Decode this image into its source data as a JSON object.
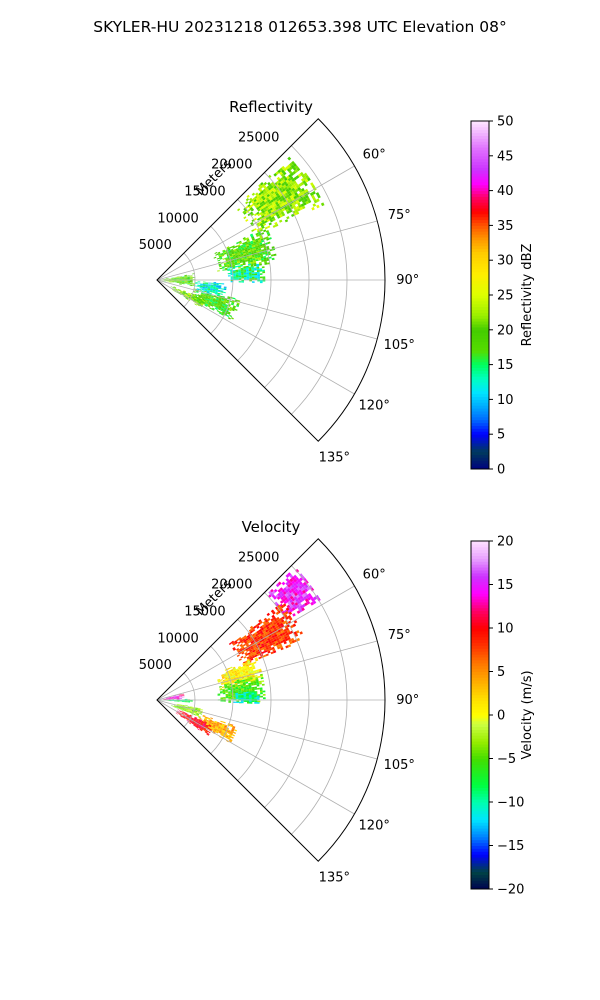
{
  "figure": {
    "suptitle": "SKYLER-HU  20231218  012653.398 UTC Elevation 08°"
  },
  "chart_data": [
    {
      "type": "heatmap",
      "projection": "polar-sector",
      "title": "Reflectivity",
      "radial_label": "Meters",
      "radial_ticks": [
        "5000",
        "10000",
        "15000",
        "20000",
        "25000"
      ],
      "radial_tick_values": [
        5000,
        10000,
        15000,
        20000,
        25000
      ],
      "rlim": [
        0,
        30000
      ],
      "angular_ticks": [
        "60°",
        "75°",
        "90°",
        "105°",
        "120°",
        "135°"
      ],
      "angular_tick_values": [
        60,
        75,
        90,
        105,
        120,
        135
      ],
      "azimuth_range": [
        45,
        135
      ],
      "grid": true,
      "colorbar": {
        "label": "Reflectivity dBZ",
        "range": [
          0,
          50
        ],
        "tick_values": [
          0,
          5,
          10,
          15,
          20,
          25,
          30,
          35,
          40,
          45,
          50
        ],
        "tick_labels": [
          "0",
          "5",
          "10",
          "15",
          "20",
          "25",
          "30",
          "35",
          "40",
          "45",
          "50"
        ]
      },
      "echo_regions": [
        {
          "az": [
            47,
            65
          ],
          "r": [
            14000,
            24000
          ],
          "value": 22
        },
        {
          "az": [
            64,
            82
          ],
          "r": [
            8000,
            16000
          ],
          "value": 19
        },
        {
          "az": [
            80,
            91
          ],
          "r": [
            9000,
            14000
          ],
          "value": 14
        },
        {
          "az": [
            80,
            100
          ],
          "r": [
            500,
            5000
          ],
          "value": 19
        },
        {
          "az": [
            103,
            118
          ],
          "r": [
            5000,
            11000
          ],
          "value": 18
        },
        {
          "az": [
            111,
            122
          ],
          "r": [
            2000,
            7000
          ],
          "value": 21
        },
        {
          "az": [
            92,
            104
          ],
          "r": [
            5000,
            9000
          ],
          "value": 12
        }
      ]
    },
    {
      "type": "heatmap",
      "projection": "polar-sector",
      "title": "Velocity",
      "radial_label": "Meters",
      "radial_ticks": [
        "5000",
        "10000",
        "15000",
        "20000",
        "25000"
      ],
      "radial_tick_values": [
        5000,
        10000,
        15000,
        20000,
        25000
      ],
      "rlim": [
        0,
        30000
      ],
      "angular_ticks": [
        "60°",
        "75°",
        "90°",
        "105°",
        "120°",
        "135°"
      ],
      "angular_tick_values": [
        60,
        75,
        90,
        105,
        120,
        135
      ],
      "azimuth_range": [
        45,
        135
      ],
      "grid": true,
      "colorbar": {
        "label": "Velocity (m/s)",
        "range": [
          -20,
          20
        ],
        "tick_values": [
          -20,
          -15,
          -10,
          -5,
          0,
          5,
          10,
          15,
          20
        ],
        "tick_labels": [
          "−20",
          "−15",
          "−10",
          "−5",
          "0",
          "5",
          "10",
          "15",
          "20"
        ]
      },
      "echo_regions": [
        {
          "az": [
            46,
            58
          ],
          "r": [
            20000,
            25000
          ],
          "value": 15
        },
        {
          "az": [
            52,
            68
          ],
          "r": [
            12000,
            21000
          ],
          "value": 8
        },
        {
          "az": [
            66,
            80
          ],
          "r": [
            8000,
            14000
          ],
          "value": 1
        },
        {
          "az": [
            76,
            92
          ],
          "r": [
            8000,
            14000
          ],
          "value": -5
        },
        {
          "az": [
            84,
            92
          ],
          "r": [
            10000,
            13500
          ],
          "value": -10
        },
        {
          "az": [
            76,
            88
          ],
          "r": [
            500,
            3500
          ],
          "value": 14
        },
        {
          "az": [
            88,
            94
          ],
          "r": [
            500,
            4500
          ],
          "value": -8
        },
        {
          "az": [
            100,
            112
          ],
          "r": [
            2000,
            6000
          ],
          "value": -3
        },
        {
          "az": [
            108,
            120
          ],
          "r": [
            6000,
            11000
          ],
          "value": 4
        },
        {
          "az": [
            114,
            125
          ],
          "r": [
            3000,
            8000
          ],
          "value": 10
        }
      ]
    }
  ]
}
